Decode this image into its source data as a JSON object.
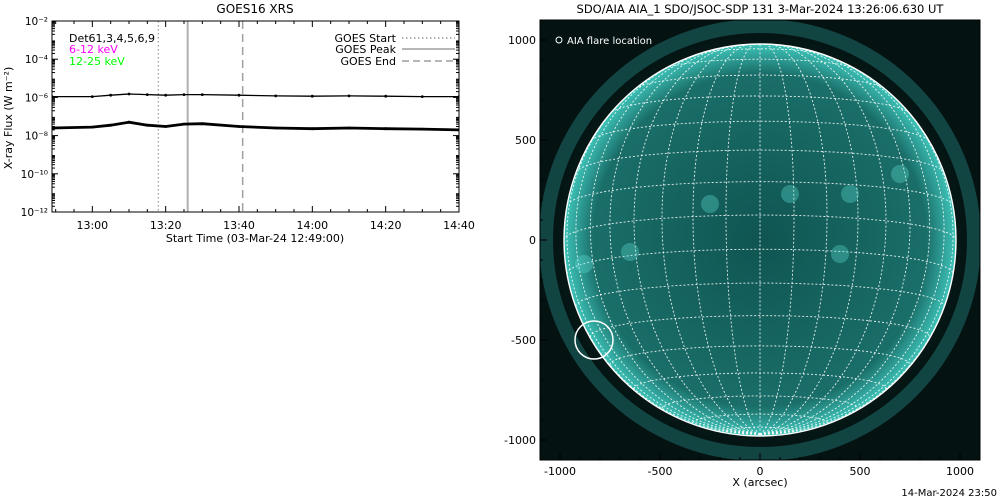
{
  "goes_panel": {
    "title": "GOES16 XRS",
    "ylabel": "X-ray Flux (W m⁻²)",
    "xlabel": "Start Time (03-Mar-24 12:49:00)",
    "detectors_label": "Det61,3,4,5,6,9",
    "band_low_label": "6-12 keV",
    "band_high_label": "12-25 keV",
    "legend": {
      "start": "GOES Start",
      "peak": "GOES Peak",
      "end": "GOES End"
    },
    "colors": {
      "band_low": "#ff00ff",
      "band_high": "#00ff00",
      "start_line": "#a0a0a0",
      "peak_line": "#b0b0b0",
      "end_line": "#a0a0a0"
    }
  },
  "aia_panel": {
    "title": "SDO/AIA AIA_1 SDO/JSOC-SDP 131  3-Mar-2024 13:26:06.630 UT",
    "legend_label": "AIA flare location",
    "xlabel": "X (arcsec)",
    "colors": {
      "disk": "#1f7f7a",
      "corona": "#0d3b3a",
      "grid": "#ffffff"
    }
  },
  "footer_timestamp": "14-Mar-2024 23:50",
  "chart_data": [
    {
      "type": "line",
      "title": "GOES16 XRS",
      "xlabel": "Start Time (03-Mar-24 12:49:00)",
      "ylabel": "X-ray Flux (W m⁻²)",
      "y_scale": "log",
      "xlim": [
        "12:49",
        "14:40"
      ],
      "ylim": [
        1e-12,
        0.01
      ],
      "x_ticks": [
        "13:00",
        "13:20",
        "13:40",
        "14:00",
        "14:20",
        "14:40"
      ],
      "y_ticks": [
        "10⁻¹²",
        "10⁻¹⁰",
        "10⁻⁸",
        "10⁻⁶",
        "10⁻⁴",
        "10⁻²"
      ],
      "series": [
        {
          "name": "",
          "x": [
            "12:49",
            "13:00",
            "13:05",
            "13:10",
            "13:15",
            "13:20",
            "13:25",
            "13:30",
            "13:40",
            "13:50",
            "14:00",
            "14:10",
            "14:20",
            "14:30",
            "14:40"
          ],
          "y": [
            1.1e-06,
            1.1e-06,
            1.3e-06,
            1.5e-06,
            1.4e-06,
            1.3e-06,
            1.4e-06,
            1.4e-06,
            1.3e-06,
            1.2e-06,
            1.15e-06,
            1.2e-06,
            1.15e-06,
            1.1e-06,
            1.1e-06
          ]
        },
        {
          "name": "",
          "x": [
            "12:49",
            "13:00",
            "13:05",
            "13:10",
            "13:15",
            "13:20",
            "13:25",
            "13:30",
            "13:40",
            "13:50",
            "14:00",
            "14:10",
            "14:20",
            "14:30",
            "14:40"
          ],
          "y": [
            2.5e-08,
            2.8e-08,
            3.5e-08,
            5e-08,
            3.5e-08,
            3e-08,
            4e-08,
            4.2e-08,
            3e-08,
            2.5e-08,
            2.3e-08,
            2.5e-08,
            2.3e-08,
            2.2e-08,
            2e-08
          ]
        }
      ],
      "markers": {
        "goes_start": "13:18",
        "goes_peak": "13:26",
        "goes_end": "13:41"
      },
      "legend": [
        "GOES Start",
        "GOES Peak",
        "GOES End"
      ],
      "legend_position": "top-right",
      "grid": false
    },
    {
      "type": "scatter",
      "title": "SDO/AIA AIA_1 SDO/JSOC-SDP 131  3-Mar-2024 13:26:06.630 UT",
      "xlabel": "X (arcsec)",
      "ylabel": "",
      "xlim": [
        -1100,
        1100
      ],
      "ylim": [
        -1100,
        1100
      ],
      "x_ticks": [
        -1000,
        -500,
        0,
        500,
        1000
      ],
      "y_ticks": [
        -1000,
        -500,
        0,
        500,
        1000
      ],
      "series": [
        {
          "name": "AIA flare location",
          "x": [
            -830
          ],
          "y": [
            -500
          ]
        }
      ],
      "legend_position": "top-left",
      "grid": true
    }
  ]
}
